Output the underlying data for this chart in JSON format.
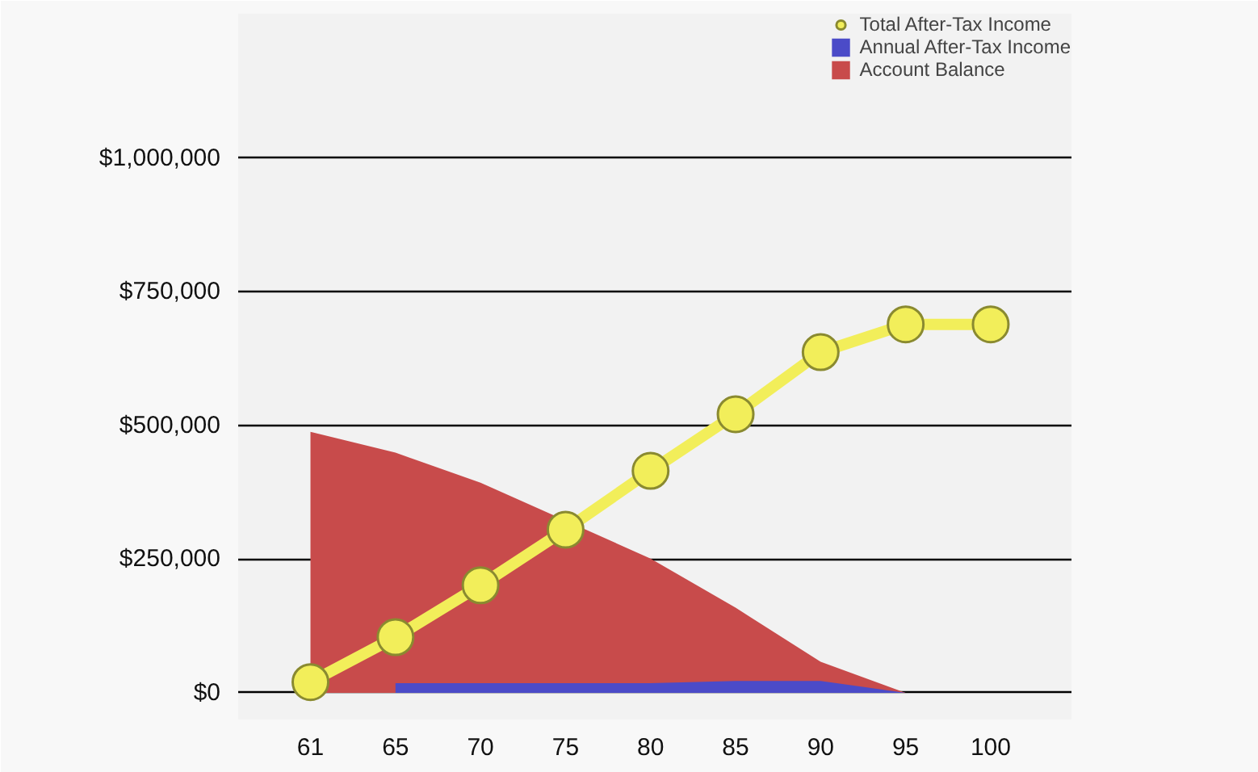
{
  "chart_data": {
    "type": "line",
    "categories": [
      "61",
      "65",
      "70",
      "75",
      "80",
      "85",
      "90",
      "95",
      "100"
    ],
    "series": [
      {
        "name": "Total After-Tax Income",
        "color": "#f2ee5a",
        "marker": "circle",
        "values": [
          20000,
          104000,
          201000,
          305000,
          415000,
          521000,
          637000,
          689000,
          689000
        ]
      },
      {
        "name": "Annual After-Tax Income",
        "type": "area",
        "color": "#4b4bc8",
        "values": [
          null,
          18000,
          18000,
          18000,
          18000,
          22000,
          22000,
          0,
          null
        ]
      },
      {
        "name": "Account Balance",
        "type": "area",
        "color": "#c84b4b",
        "values": [
          488000,
          449000,
          393000,
          null,
          251000,
          159000,
          58000,
          0,
          null
        ]
      }
    ],
    "ylim": [
      -50000,
      1270000
    ],
    "yticks": [
      {
        "value": 0,
        "label": "$0"
      },
      {
        "value": 250000,
        "label": "$250,000"
      },
      {
        "value": 500000,
        "label": "$500,000"
      },
      {
        "value": 750000,
        "label": "$750,000"
      },
      {
        "value": 1000000,
        "label": "$1,000,000"
      }
    ],
    "grid": "y",
    "legend": "top right"
  }
}
